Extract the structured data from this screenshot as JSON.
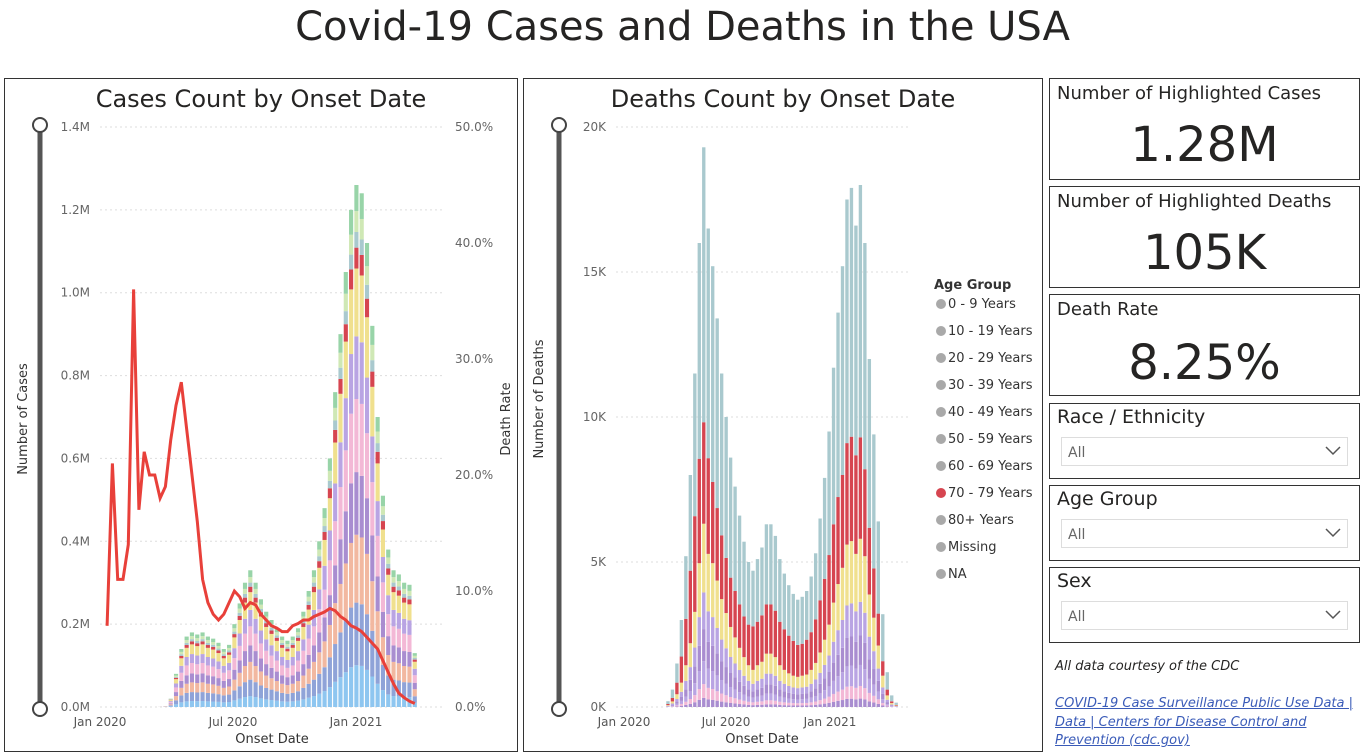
{
  "page": {
    "title": "Covid-19 Cases and Deaths in the USA"
  },
  "cases_chart": {
    "title": "Cases Count by Onset Date",
    "ylabel": "Number of Cases",
    "y2label": "Death Rate",
    "xlabel": "Onset Date",
    "y_ticks": [
      "1.4M",
      "1.2M",
      "1.0M",
      "0.8M",
      "0.6M",
      "0.4M",
      "0.2M",
      "0.0M"
    ],
    "y2_ticks": [
      "50.0%",
      "40.0%",
      "30.0%",
      "20.0%",
      "10.0%",
      "0.0%"
    ],
    "x_ticks": [
      "Jan 2020",
      "Jul 2020",
      "Jan 2021"
    ]
  },
  "deaths_chart": {
    "title": "Deaths Count by Onset Date",
    "ylabel": "Number of Deaths",
    "xlabel": "Onset Date",
    "y_ticks": [
      "20K",
      "15K",
      "10K",
      "5K",
      "0K"
    ],
    "x_ticks": [
      "Jan 2020",
      "Jul 2020",
      "Jan 2021"
    ],
    "legend_title": "Age Group",
    "legend": [
      {
        "label": "0 - 9 Years",
        "color": "#a9a9a9"
      },
      {
        "label": "10 - 19 Years",
        "color": "#a9a9a9"
      },
      {
        "label": "20 - 29 Years",
        "color": "#a9a9a9"
      },
      {
        "label": "30 - 39 Years",
        "color": "#a9a9a9"
      },
      {
        "label": "40 - 49 Years",
        "color": "#a9a9a9"
      },
      {
        "label": "50 - 59 Years",
        "color": "#a9a9a9"
      },
      {
        "label": "60 - 69 Years",
        "color": "#a9a9a9"
      },
      {
        "label": "70 - 79 Years",
        "color": "#d64550"
      },
      {
        "label": "80+ Years",
        "color": "#a9a9a9"
      },
      {
        "label": "Missing",
        "color": "#a9a9a9"
      },
      {
        "label": "NA",
        "color": "#a9a9a9"
      }
    ]
  },
  "cards": {
    "cases": {
      "label": "Number of Highlighted Cases",
      "value": "1.28M"
    },
    "deaths": {
      "label": "Number of Highlighted Deaths",
      "value": "105K"
    },
    "rate": {
      "label": "Death Rate",
      "value": "8.25%"
    }
  },
  "slicers": {
    "race": {
      "label": "Race / Ethnicity",
      "value": "All"
    },
    "age": {
      "label": "Age Group",
      "value": "All"
    },
    "sex": {
      "label": "Sex",
      "value": "All"
    }
  },
  "footer": {
    "credit": "All data courtesy of the CDC",
    "link": "COVID-19 Case Surveillance Public Use Data | Data | Centers for Disease Control and Prevention (cdc.gov)"
  },
  "colors": {
    "line": "#e8403a",
    "seg_colors": [
      "#8ec6f0",
      "#8fa3d8",
      "#f2b8a0",
      "#a98dd0",
      "#f3b8d6",
      "#b9a4e3",
      "#f0e08e",
      "#d64550",
      "#a9c9ce",
      "#cfe8b5",
      "#98d4a8"
    ]
  },
  "chart_data": [
    {
      "type": "bar",
      "title": "Cases Count by Onset Date",
      "xlabel": "Onset Date",
      "ylabel": "Number of Cases",
      "y2label": "Death Rate",
      "ylim": [
        0,
        1400000
      ],
      "y2lim": [
        0,
        0.5
      ],
      "x_ticks": [
        "Jan 2020",
        "Jul 2020",
        "Jan 2021"
      ],
      "totals": [
        0,
        0,
        0,
        0,
        0,
        0,
        0,
        0,
        0,
        0,
        500,
        2000,
        20000,
        80000,
        140000,
        170000,
        180000,
        175000,
        180000,
        170000,
        165000,
        155000,
        140000,
        150000,
        200000,
        250000,
        300000,
        330000,
        300000,
        260000,
        230000,
        210000,
        190000,
        170000,
        160000,
        170000,
        190000,
        230000,
        280000,
        330000,
        400000,
        480000,
        600000,
        760000,
        900000,
        1050000,
        1200000,
        1260000,
        1240000,
        1120000,
        920000,
        700000,
        510000,
        380000,
        330000,
        320000,
        300000,
        295000,
        130000
      ],
      "death_rate": [
        0.07,
        0.21,
        0.11,
        0.11,
        0.14,
        0.36,
        0.17,
        0.22,
        0.2,
        0.2,
        0.18,
        0.19,
        0.23,
        0.26,
        0.28,
        0.24,
        0.2,
        0.16,
        0.11,
        0.09,
        0.08,
        0.075,
        0.08,
        0.09,
        0.1,
        0.095,
        0.085,
        0.09,
        0.088,
        0.08,
        0.075,
        0.07,
        0.068,
        0.065,
        0.065,
        0.07,
        0.072,
        0.075,
        0.075,
        0.078,
        0.08,
        0.082,
        0.085,
        0.083,
        0.078,
        0.075,
        0.07,
        0.068,
        0.065,
        0.06,
        0.055,
        0.05,
        0.04,
        0.03,
        0.02,
        0.012,
        0.008,
        0.005,
        0.003
      ]
    },
    {
      "type": "bar",
      "title": "Deaths Count by Onset Date",
      "xlabel": "Onset Date",
      "ylabel": "Number of Deaths",
      "ylim": [
        0,
        20000
      ],
      "x_ticks": [
        "Jan 2020",
        "Jul 2020",
        "Jan 2021"
      ],
      "totals": [
        0,
        0,
        0,
        0,
        0,
        0,
        0,
        0,
        0,
        200,
        600,
        1500,
        3000,
        5200,
        8000,
        11500,
        16000,
        19300,
        16500,
        15200,
        13400,
        11500,
        10000,
        8600,
        7600,
        6600,
        5700,
        5000,
        4700,
        5100,
        5500,
        6300,
        6300,
        5900,
        5100,
        4600,
        4200,
        3900,
        3700,
        3800,
        4000,
        4500,
        5300,
        6500,
        7900,
        9500,
        11700,
        13600,
        15200,
        17500,
        17900,
        16600,
        18000,
        16000,
        12000,
        9400,
        6400,
        3200,
        1200,
        400,
        150
      ],
      "seg_70_79": [
        0,
        0,
        0,
        0,
        0,
        0,
        0,
        0,
        0,
        40,
        120,
        400,
        900,
        1600,
        2500,
        3300,
        3600,
        3500,
        3300,
        2800,
        2500,
        2200,
        1900,
        1700,
        1600,
        1500,
        1400,
        1400,
        1500,
        1500,
        1600,
        1700,
        1700,
        1600,
        1500,
        1400,
        1300,
        1200,
        1100,
        1100,
        1200,
        1300,
        1500,
        1800,
        2100,
        2400,
        2700,
        3000,
        3200,
        3500,
        3600,
        3400,
        3500,
        3000,
        2300,
        1700,
        1100,
        500,
        200,
        60,
        20
      ],
      "legend_title": "Age Group",
      "series": [
        "0 - 9 Years",
        "10 - 19 Years",
        "20 - 29 Years",
        "30 - 39 Years",
        "40 - 49 Years",
        "50 - 59 Years",
        "60 - 69 Years",
        "70 - 79 Years",
        "80+ Years",
        "Missing",
        "NA"
      ]
    }
  ]
}
